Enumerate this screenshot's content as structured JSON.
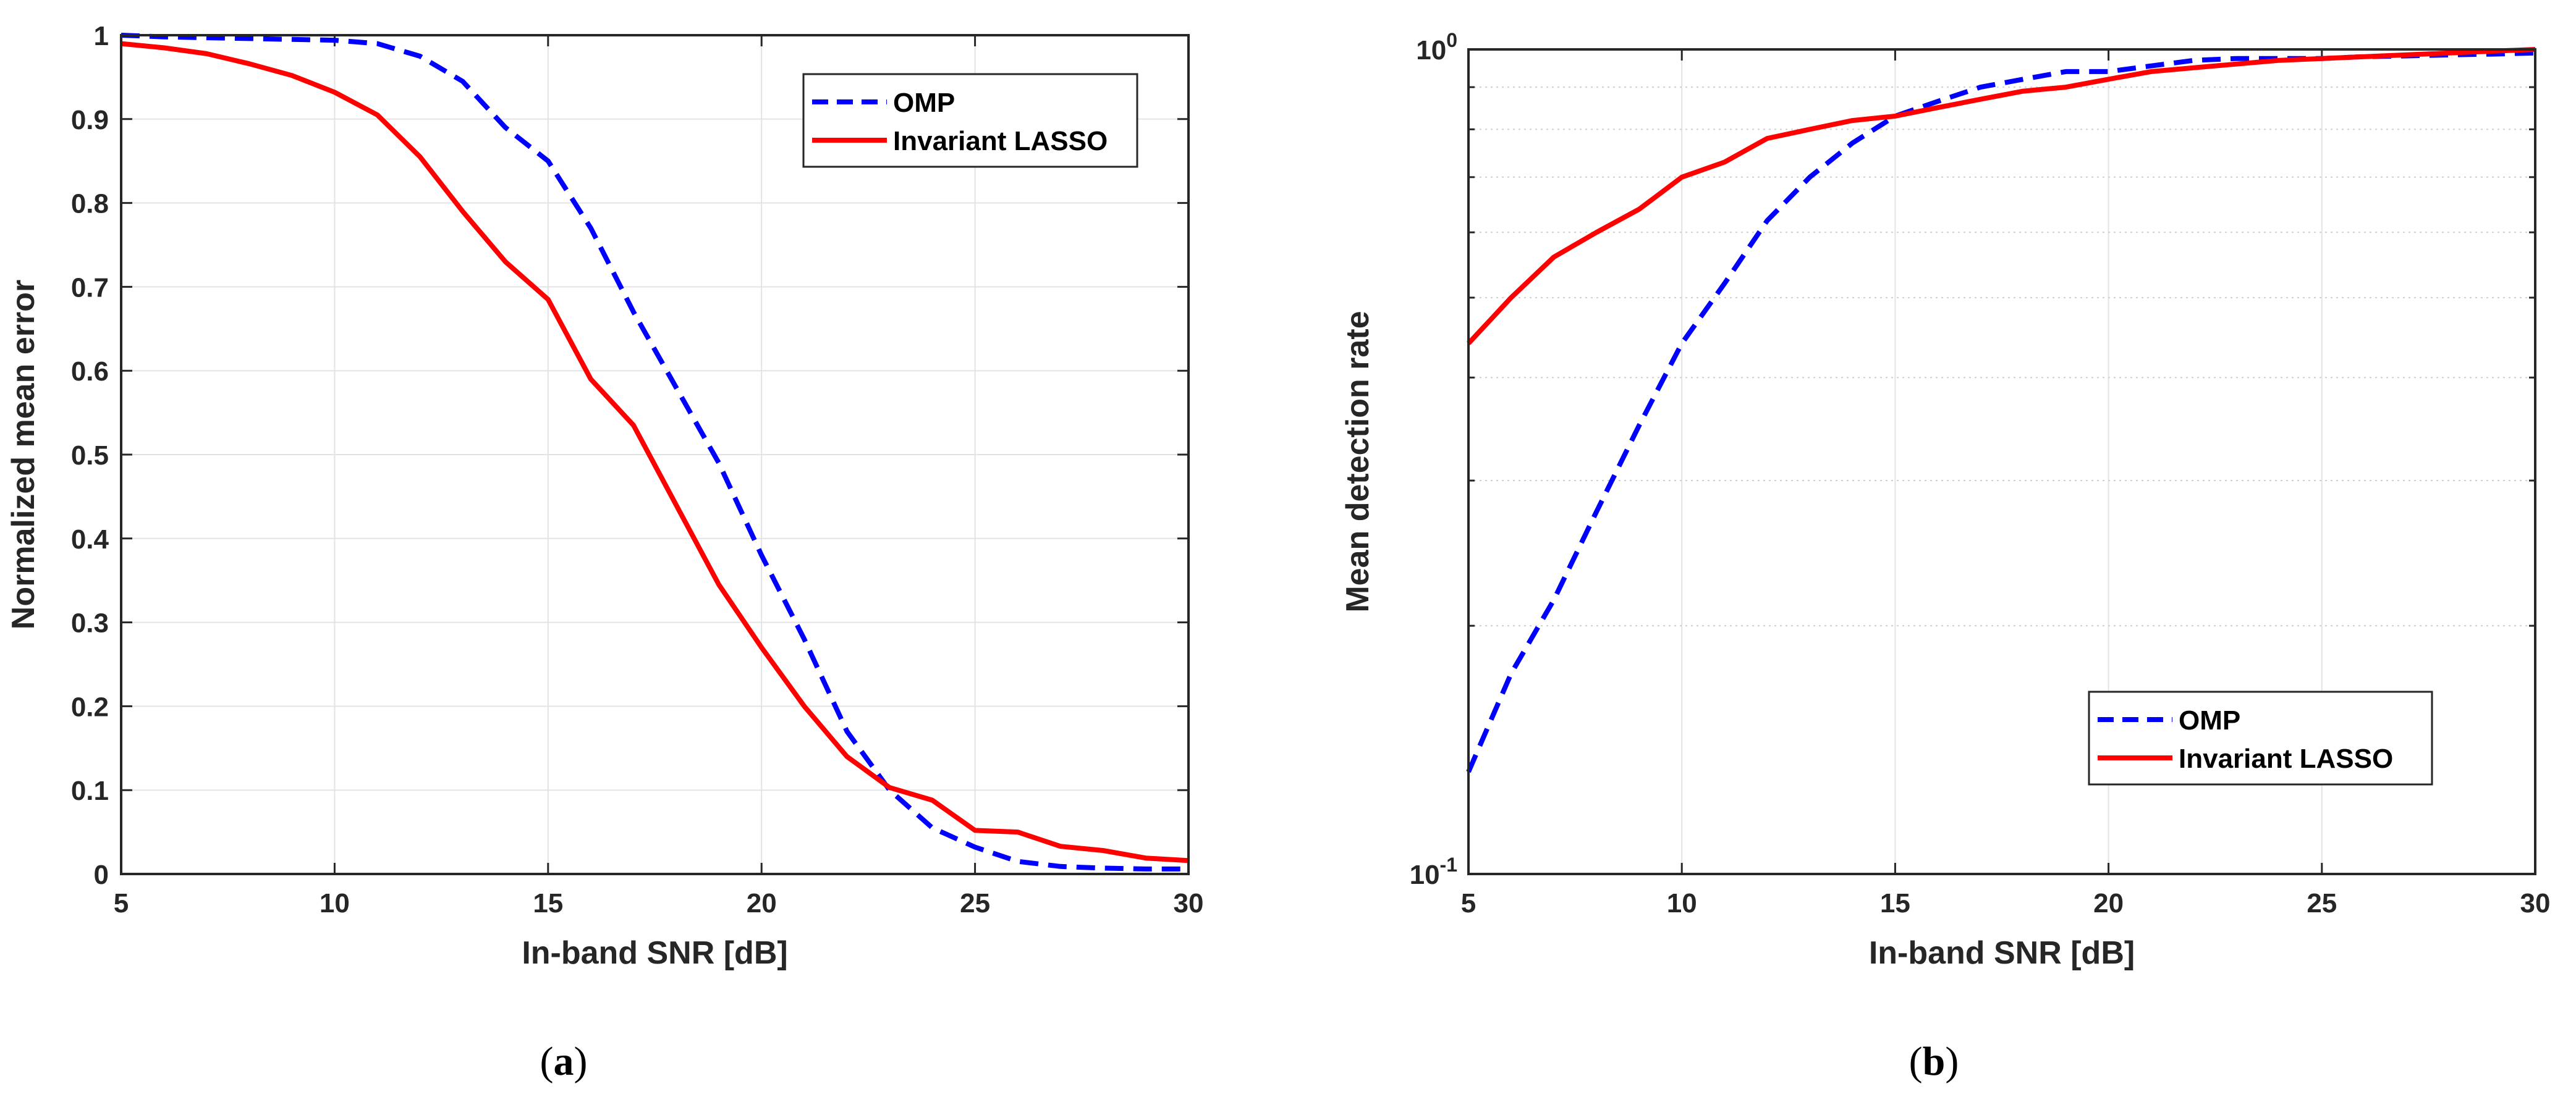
{
  "chart_data": [
    {
      "type": "line",
      "panel": "a",
      "caption_letter": "a",
      "xlabel": "In-band SNR [dB]",
      "ylabel": "Normalized mean error",
      "xlim": [
        5,
        30
      ],
      "ylim": [
        0,
        1
      ],
      "yscale": "linear",
      "xticks": [
        5,
        10,
        15,
        20,
        25,
        30
      ],
      "yticks": [
        0,
        0.1,
        0.2,
        0.3,
        0.4,
        0.5,
        0.6,
        0.7,
        0.8,
        0.9,
        1
      ],
      "ytick_labels": [
        "0",
        "0.1",
        "0.2",
        "0.3",
        "0.4",
        "0.5",
        "0.6",
        "0.7",
        "0.8",
        "0.9",
        "1"
      ],
      "grid": true,
      "legend_position": "top-right",
      "x": [
        5,
        6,
        7,
        8,
        9,
        10,
        11,
        12,
        13,
        14,
        15,
        16,
        17,
        18,
        19,
        20,
        21,
        22,
        23,
        24,
        25,
        26,
        27,
        28,
        29,
        30
      ],
      "series": [
        {
          "name": "OMP",
          "color": "#0000ff",
          "style": "dashed",
          "values": [
            1.0,
            0.998,
            0.997,
            0.996,
            0.995,
            0.994,
            0.99,
            0.975,
            0.945,
            0.89,
            0.85,
            0.77,
            0.67,
            0.58,
            0.49,
            0.38,
            0.28,
            0.17,
            0.1,
            0.055,
            0.032,
            0.015,
            0.009,
            0.007,
            0.006,
            0.006
          ]
        },
        {
          "name": "Invariant LASSO",
          "color": "#ff0000",
          "style": "solid",
          "values": [
            0.99,
            0.985,
            0.978,
            0.966,
            0.952,
            0.932,
            0.905,
            0.855,
            0.79,
            0.73,
            0.685,
            0.59,
            0.535,
            0.44,
            0.345,
            0.27,
            0.2,
            0.14,
            0.103,
            0.088,
            0.052,
            0.05,
            0.033,
            0.028,
            0.019,
            0.016
          ]
        }
      ]
    },
    {
      "type": "line",
      "panel": "b",
      "caption_letter": "b",
      "xlabel": "In-band SNR [dB]",
      "ylabel": "Mean detection rate",
      "xlim": [
        5,
        30
      ],
      "ylim": [
        0.1,
        1
      ],
      "yscale": "log",
      "xticks": [
        5,
        10,
        15,
        20,
        25,
        30
      ],
      "ytick_labels": [
        {
          "base": "10",
          "exp": "-1",
          "value": 0.1
        },
        {
          "base": "10",
          "exp": "0",
          "value": 1
        }
      ],
      "minor_yticks": [
        0.2,
        0.3,
        0.4,
        0.5,
        0.6,
        0.7,
        0.8,
        0.9
      ],
      "grid": true,
      "legend_position": "bottom-right",
      "x": [
        5,
        6,
        7,
        8,
        9,
        10,
        11,
        12,
        13,
        14,
        15,
        16,
        17,
        18,
        19,
        20,
        21,
        22,
        23,
        24,
        25,
        26,
        27,
        28,
        29,
        30
      ],
      "series": [
        {
          "name": "OMP",
          "color": "#0000ff",
          "style": "dashed",
          "values": [
            0.133,
            0.175,
            0.215,
            0.275,
            0.35,
            0.44,
            0.52,
            0.62,
            0.7,
            0.77,
            0.83,
            0.865,
            0.9,
            0.92,
            0.94,
            0.94,
            0.955,
            0.97,
            0.975,
            0.975,
            0.975,
            0.98,
            0.982,
            0.985,
            0.987,
            0.99
          ]
        },
        {
          "name": "Invariant LASSO",
          "color": "#ff0000",
          "style": "solid",
          "values": [
            0.44,
            0.5,
            0.56,
            0.6,
            0.64,
            0.7,
            0.73,
            0.78,
            0.8,
            0.82,
            0.83,
            0.85,
            0.87,
            0.89,
            0.9,
            0.92,
            0.94,
            0.95,
            0.96,
            0.97,
            0.975,
            0.98,
            0.985,
            0.99,
            0.995,
            1.0
          ]
        }
      ]
    }
  ]
}
